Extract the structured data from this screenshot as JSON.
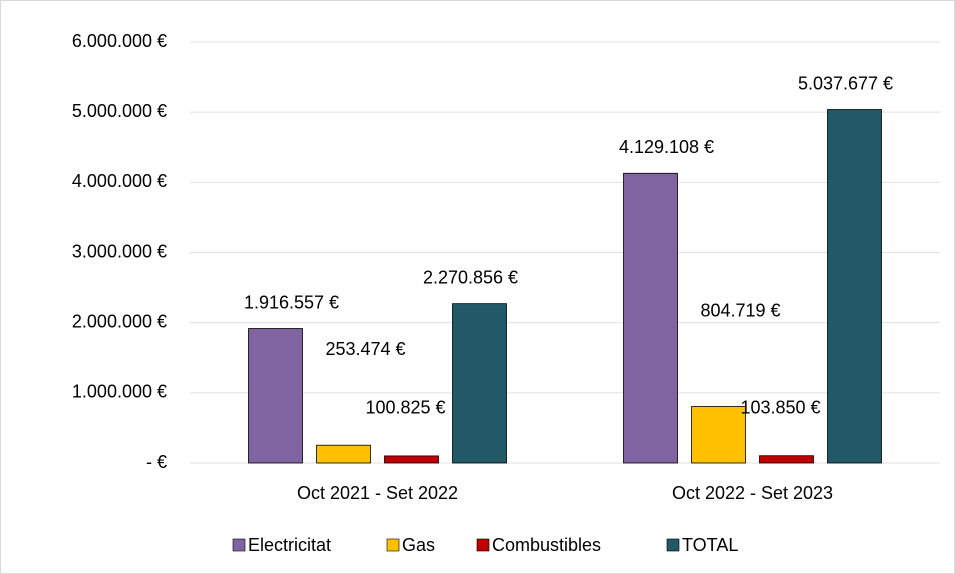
{
  "chart_data": {
    "type": "bar",
    "categories": [
      "Oct 2021 - Set 2022",
      "Oct 2022 - Set 2023"
    ],
    "series": [
      {
        "name": "Electricitat",
        "color": "#8064a2",
        "values": [
          1916557,
          4129108
        ],
        "value_labels": [
          "1.916.557 €",
          "4.129.108 €"
        ]
      },
      {
        "name": "Gas",
        "color": "#ffc000",
        "values": [
          253474,
          804719
        ],
        "value_labels": [
          "253.474 €",
          "804.719 €"
        ]
      },
      {
        "name": "Combustibles",
        "color": "#c00000",
        "values": [
          100825,
          103850
        ],
        "value_labels": [
          "100.825 €",
          "103.850 €"
        ]
      },
      {
        "name": "TOTAL",
        "color": "#215968",
        "values": [
          2270856,
          5037677
        ],
        "value_labels": [
          "2.270.856 €",
          "5.037.677 €"
        ]
      }
    ],
    "ylim": [
      0,
      6000000
    ],
    "yticks": [
      {
        "value": 0,
        "label": "-   €"
      },
      {
        "value": 1000000,
        "label": "1.000.000 €"
      },
      {
        "value": 2000000,
        "label": "2.000.000 €"
      },
      {
        "value": 3000000,
        "label": "3.000.000 €"
      },
      {
        "value": 4000000,
        "label": "4.000.000 €"
      },
      {
        "value": 5000000,
        "label": "5.000.000 €"
      },
      {
        "value": 6000000,
        "label": "6.000.000 €"
      }
    ],
    "grid": true,
    "legend": "bottom"
  }
}
